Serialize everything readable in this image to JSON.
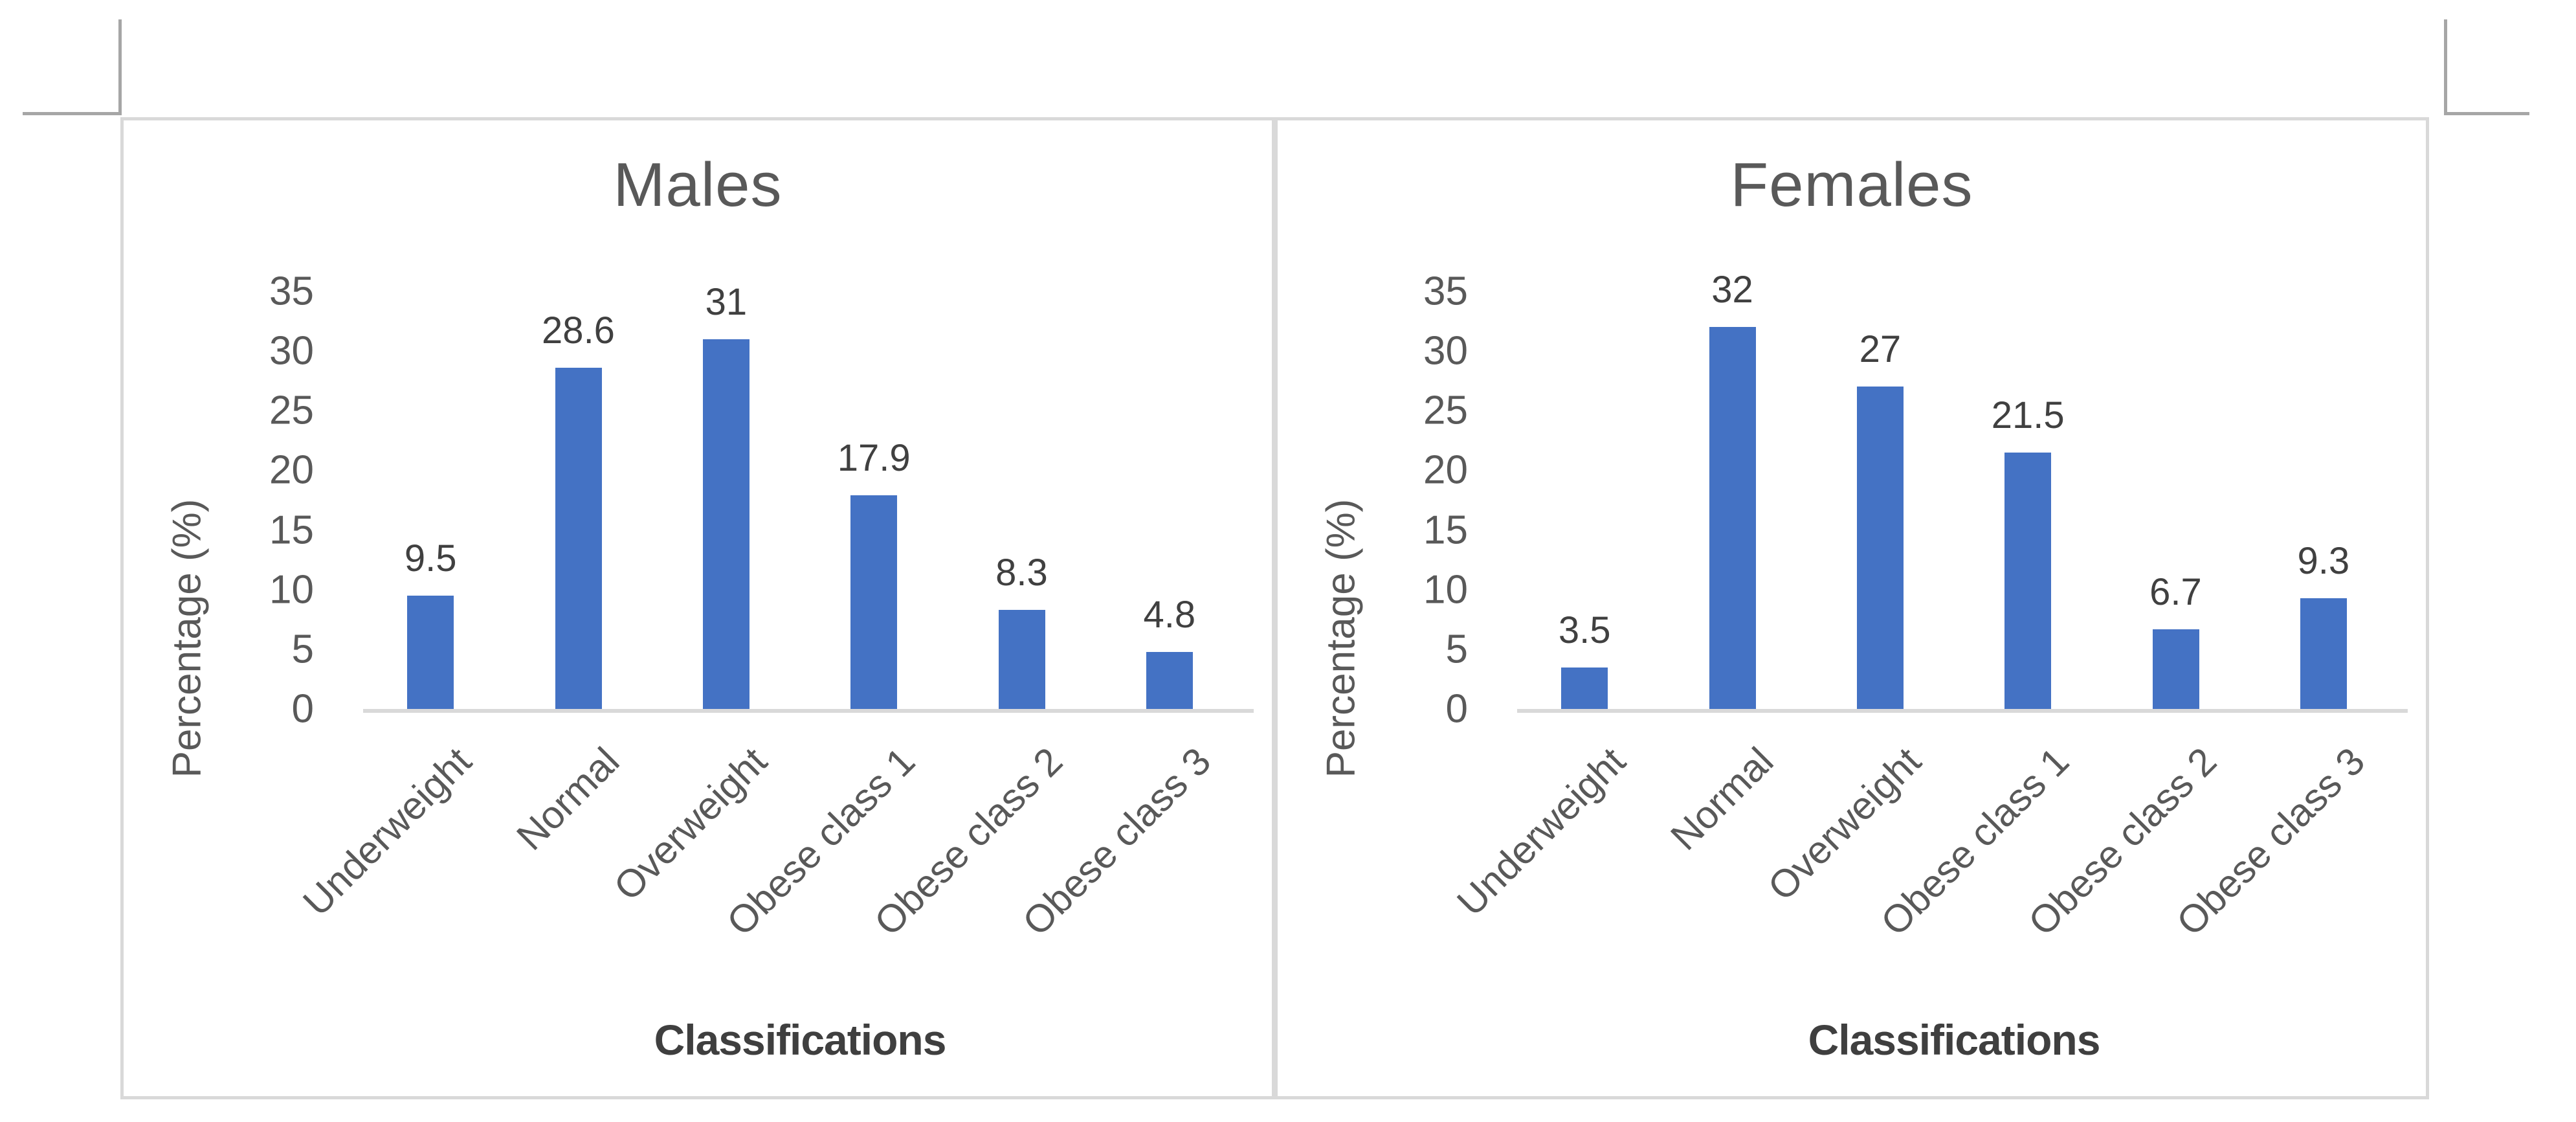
{
  "styles": {
    "bar_color": "#4472c4",
    "title_text_color": "#595959",
    "axis_text_color": "#595959",
    "data_label_color": "#404040",
    "axis_title_color": "#3f3f3f",
    "frame_border_color": "#d9d9d9",
    "axis_line_color": "#d9d9d9",
    "crop_mark_color": "#a6a6a6",
    "background": "#ffffff"
  },
  "chart_data": [
    {
      "type": "bar",
      "title": "Males",
      "categories": [
        "Underweight",
        "Normal",
        "Overweight",
        "Obese class 1",
        "Obese class 2",
        "Obese class 3"
      ],
      "values": [
        9.5,
        28.6,
        31,
        17.9,
        8.3,
        4.8
      ],
      "data_labels": [
        "9.5",
        "28.6",
        "31",
        "17.9",
        "8.3",
        "4.8"
      ],
      "xlabel": "Classifications",
      "ylabel": "Percentage (%)",
      "ylim": [
        0,
        35
      ],
      "yticks": [
        0,
        5,
        10,
        15,
        20,
        25,
        30,
        35
      ],
      "grid": false,
      "legend": "none",
      "bar_color": "#4472c4"
    },
    {
      "type": "bar",
      "title": "Females",
      "categories": [
        "Underweight",
        "Normal",
        "Overweight",
        "Obese class 1",
        "Obese class 2",
        "Obese class 3"
      ],
      "values": [
        3.5,
        32,
        27,
        21.5,
        6.7,
        9.3
      ],
      "data_labels": [
        "3.5",
        "32",
        "27",
        "21.5",
        "6.7",
        "9.3"
      ],
      "xlabel": "Classifications",
      "ylabel": "Percentage (%)",
      "ylim": [
        0,
        35
      ],
      "yticks": [
        0,
        5,
        10,
        15,
        20,
        25,
        30,
        35
      ],
      "grid": false,
      "legend": "none",
      "bar_color": "#4472c4"
    }
  ]
}
